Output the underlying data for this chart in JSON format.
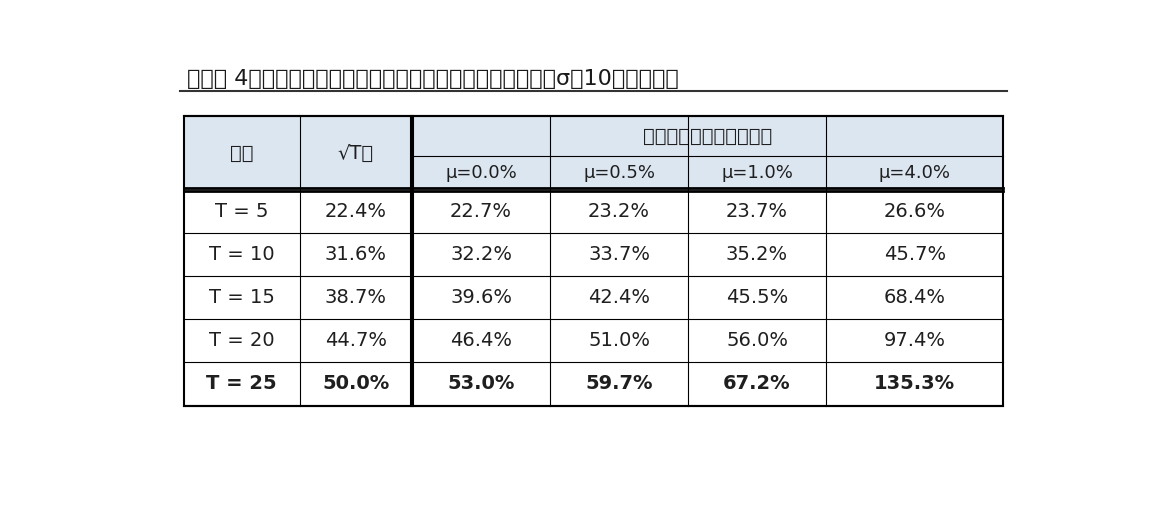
{
  "title": "『図表４』期待リターン別、投資期間別長期投資のリスク（σ＝10％の場合）",
  "title_display": "【図表 4】期待リターン別、投資期間別長期投資のリスク（σ＝10％の場合）",
  "header_period": "期間",
  "header_sqrt": "√T倍",
  "header_sim": "シミュレーションの結果",
  "sub_headers": [
    "μ=0.0%",
    "μ=0.5%",
    "μ=1.0%",
    "μ=4.0%"
  ],
  "rows": [
    [
      "T＝5",
      "22.4%",
      "22.7%",
      "23.2%",
      "23.7%",
      "26.6%"
    ],
    [
      "T＝10",
      "31.6%",
      "32.2%",
      "33.7%",
      "35.2%",
      "45.7%"
    ],
    [
      "T＝15",
      "38.7%",
      "39.6%",
      "42.4%",
      "45.5%",
      "68.4%"
    ],
    [
      "T＝20",
      "44.7%",
      "46.4%",
      "51.0%",
      "56.0%",
      "97.4%"
    ],
    [
      "T＝25",
      "50.0%",
      "53.0%",
      "59.7%",
      "67.2%",
      "135.3%"
    ]
  ],
  "rows_display": [
    [
      "T = 5",
      "22.4%",
      "22.7%",
      "23.2%",
      "23.7%",
      "26.6%"
    ],
    [
      "T = 10",
      "31.6%",
      "32.2%",
      "33.7%",
      "35.2%",
      "45.7%"
    ],
    [
      "T = 15",
      "38.7%",
      "39.6%",
      "42.4%",
      "45.5%",
      "68.4%"
    ],
    [
      "T = 20",
      "44.7%",
      "46.4%",
      "51.0%",
      "56.0%",
      "97.4%"
    ],
    [
      "T = 25",
      "50.0%",
      "53.0%",
      "59.7%",
      "67.2%",
      "135.3%"
    ]
  ],
  "header_bg": "#dce6f1",
  "table_bg": "#ffffff",
  "outer_bg": "#ffffff",
  "border_color": "#000000",
  "text_color": "#1f1f1f",
  "title_color": "#1a1a1a"
}
